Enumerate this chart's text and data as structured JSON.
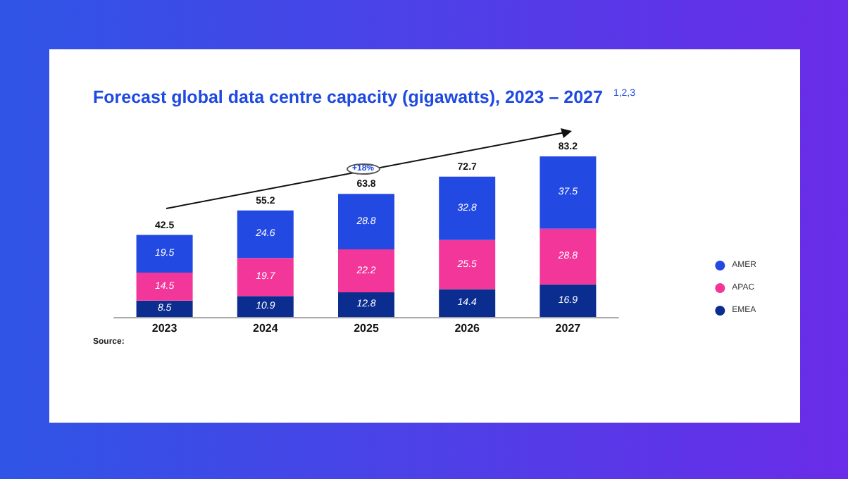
{
  "chart_data": {
    "type": "bar",
    "title": "Forecast global data centre capacity (gigawatts), 2023 – 2027 $^{1,2,3}$",
    "categories": [
      "2023",
      "2024",
      "2025",
      "2026",
      "2027"
    ],
    "stacked": true,
    "series": [
      {
        "name": "EMEA",
        "color": "#0b2d8f",
        "values": [
          8.5,
          10.9,
          12.8,
          14.4,
          16.9
        ]
      },
      {
        "name": "APAC",
        "color": "#f2369a",
        "values": [
          14.5,
          19.7,
          22.2,
          25.5,
          28.8
        ]
      },
      {
        "name": "AMER",
        "color": "#2349e3",
        "values": [
          19.5,
          24.6,
          28.8,
          32.8,
          37.5
        ]
      }
    ],
    "totals": [
      "42.5",
      "55.2",
      "63.8",
      "72.7",
      "83.2"
    ],
    "data_labels": true,
    "legend": "right",
    "grid": false,
    "annotations": [
      "+18%",
      "Source:"
    ]
  }
}
